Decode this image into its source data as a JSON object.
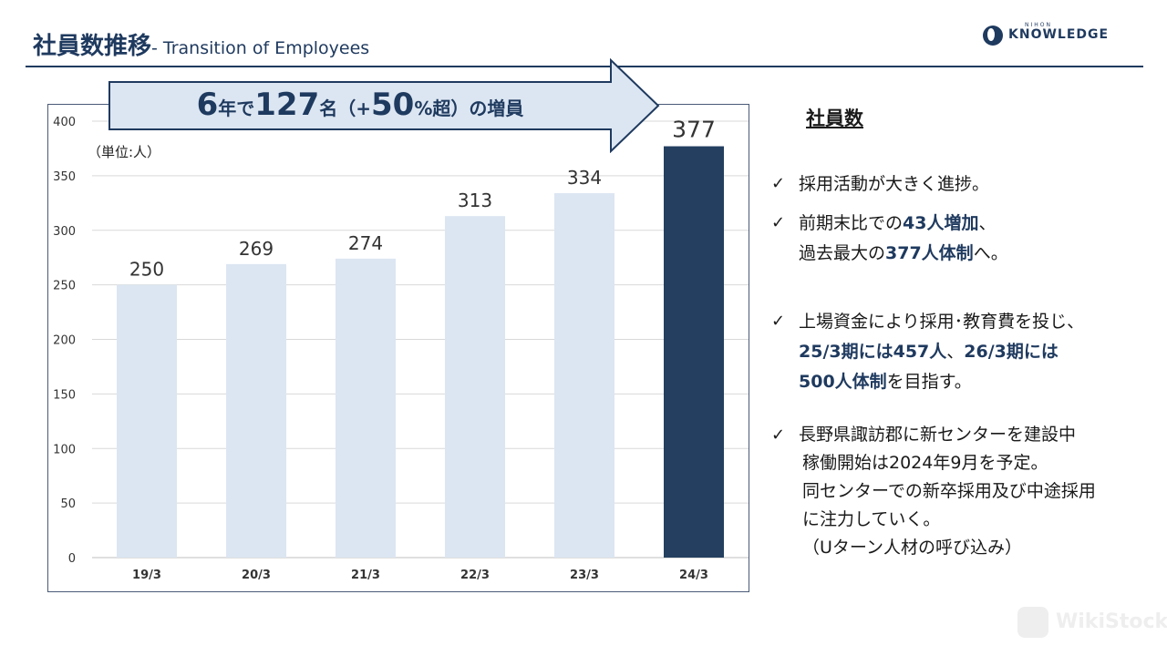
{
  "header": {
    "title_jp": "社員数推移",
    "title_en": "- Transition of Employees"
  },
  "logo": {
    "top": "NIHON",
    "main": "KNOWLEDGE"
  },
  "banner": {
    "num1": "6",
    "t1": "年で",
    "num2": "127",
    "t2": "名（+",
    "num3": "50",
    "t3": "%超）の増員"
  },
  "unit_label": "（単位:人）",
  "chart_data": {
    "type": "bar",
    "categories": [
      "19/3",
      "20/3",
      "21/3",
      "22/3",
      "23/3",
      "24/3"
    ],
    "values": [
      250,
      269,
      274,
      313,
      334,
      377
    ],
    "value_labels": [
      "250",
      "269",
      "274",
      "313",
      "334",
      "377"
    ],
    "ylim": [
      0,
      400
    ],
    "yticks": [
      0,
      50,
      100,
      150,
      200,
      250,
      300,
      350,
      400
    ],
    "grid": true,
    "colors": {
      "bar": "#dce6f2",
      "highlight": "#243f60",
      "grid": "#d9d9d9"
    },
    "highlight_index": 5
  },
  "right": {
    "heading": "社員数",
    "b1_l1": "採用活動が大きく進捗。",
    "b2_l1_a": "前期末比での",
    "b2_l1_b": "43人増加",
    "b2_l1_c": "、",
    "b2_l2_a": "過去最大の",
    "b2_l2_b": "377人体制",
    "b2_l2_c": "へ。",
    "b3_l1": "上場資金により採用･教育費を投じ、",
    "b3_l2_a": "25/3期には457人",
    "b3_l2_b": "、",
    "b3_l2_c": "26/3期には",
    "b3_l3_a": "500人体制",
    "b3_l3_b": "を目指す。",
    "b4_l1": "長野県諏訪郡に新センターを建設中",
    "b4_l2": "稼働開始は2024年9月を予定。",
    "b4_l3": "同センターでの新卒採用及び中途採用",
    "b4_l4": "に注力していく。",
    "b4_l5": "（Uターン人材の呼び込み）",
    "check": "✓"
  },
  "watermark": "WikiStock"
}
